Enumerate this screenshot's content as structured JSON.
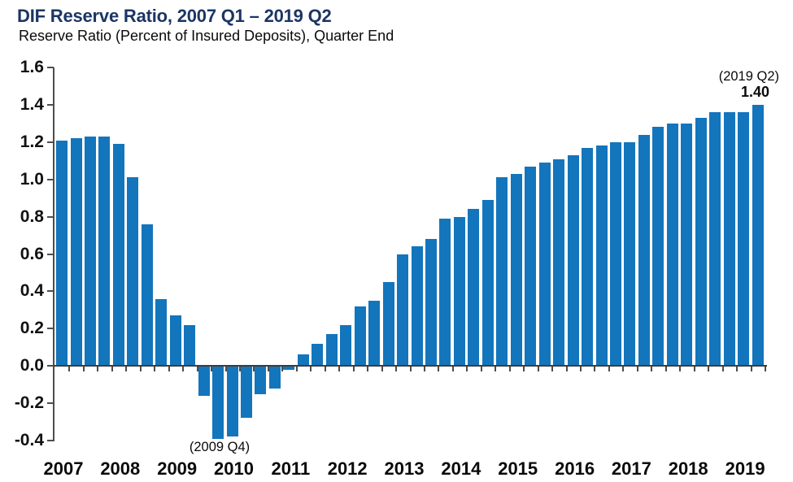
{
  "header": {
    "title": "DIF Reserve Ratio, 2007 Q1 – 2019 Q2",
    "subtitle": "Reserve Ratio (Percent of Insured Deposits), Quarter End"
  },
  "chart_data": {
    "type": "bar",
    "title": "DIF Reserve Ratio, 2007 Q1 – 2019 Q2",
    "subtitle": "Reserve Ratio (Percent of Insured Deposits), Quarter End",
    "xlabel": "",
    "ylabel": "Reserve Ratio (Percent of Insured Deposits)",
    "ylim": [
      -0.4,
      1.6
    ],
    "y_tick_step": 0.2,
    "y_tick_labels": [
      "1.6",
      "1.4",
      "1.2",
      "1.0",
      "0.8",
      "0.6",
      "0.4",
      "0.2",
      "0.0",
      "-0.2",
      "-0.4"
    ],
    "grid": false,
    "legend": "none",
    "categories": [
      "2007 Q1",
      "2007 Q2",
      "2007 Q3",
      "2007 Q4",
      "2008 Q1",
      "2008 Q2",
      "2008 Q3",
      "2008 Q4",
      "2009 Q1",
      "2009 Q2",
      "2009 Q3",
      "2009 Q4",
      "2010 Q1",
      "2010 Q2",
      "2010 Q3",
      "2010 Q4",
      "2011 Q1",
      "2011 Q2",
      "2011 Q3",
      "2011 Q4",
      "2012 Q1",
      "2012 Q2",
      "2012 Q3",
      "2012 Q4",
      "2013 Q1",
      "2013 Q2",
      "2013 Q3",
      "2013 Q4",
      "2014 Q1",
      "2014 Q2",
      "2014 Q3",
      "2014 Q4",
      "2015 Q1",
      "2015 Q2",
      "2015 Q3",
      "2015 Q4",
      "2016 Q1",
      "2016 Q2",
      "2016 Q3",
      "2016 Q4",
      "2017 Q1",
      "2017 Q2",
      "2017 Q3",
      "2017 Q4",
      "2018 Q1",
      "2018 Q2",
      "2018 Q3",
      "2018 Q4",
      "2019 Q1",
      "2019 Q2"
    ],
    "values": [
      1.21,
      1.22,
      1.23,
      1.23,
      1.19,
      1.01,
      0.76,
      0.36,
      0.27,
      0.22,
      -0.16,
      -0.39,
      -0.38,
      -0.28,
      -0.15,
      -0.12,
      -0.02,
      0.06,
      0.12,
      0.17,
      0.22,
      0.32,
      0.35,
      0.45,
      0.6,
      0.64,
      0.68,
      0.79,
      0.8,
      0.84,
      0.89,
      1.01,
      1.03,
      1.07,
      1.09,
      1.11,
      1.13,
      1.17,
      1.18,
      1.2,
      1.2,
      1.24,
      1.28,
      1.3,
      1.3,
      1.33,
      1.36,
      1.36,
      1.36,
      1.4
    ],
    "x_year_labels": [
      "2007",
      "2008",
      "2009",
      "2010",
      "2011",
      "2012",
      "2013",
      "2014",
      "2015",
      "2016",
      "2017",
      "2018",
      "2019"
    ],
    "annotations": {
      "latest_period": "(2019 Q2)",
      "latest_value": "1.40",
      "trough_period": "(2009 Q4)"
    },
    "colors": {
      "bar": "#1375BC",
      "title": "#1C3564",
      "axis": "#4d4d4d",
      "text": "#0a0a0a"
    }
  }
}
